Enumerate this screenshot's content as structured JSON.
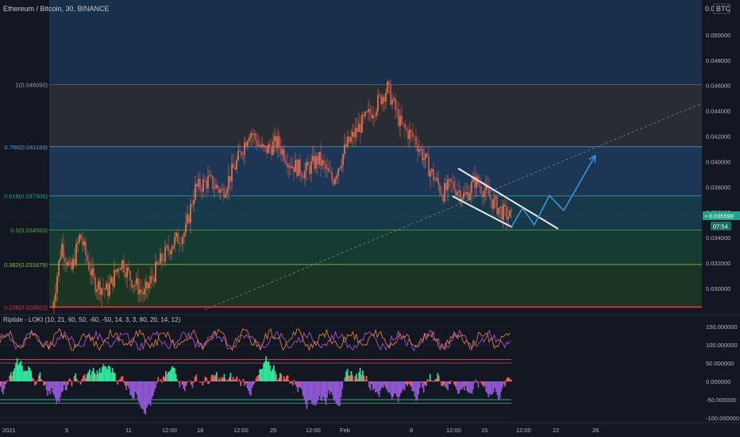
{
  "header": {
    "symbol": "Ethereum / Bitcoin, 30, BINANCE",
    "scale_label": "0.05",
    "currency": "BTC"
  },
  "colors": {
    "background": "#131722",
    "candle_up": "#ef7b45",
    "candle_down": "#cf5a5a",
    "arrow": "#3a98e8",
    "channel": "#e8e8f2",
    "oscillator_orange": "#f0863e",
    "oscillator_purple": "#b85ad6",
    "histogram_green": "#2ee59d",
    "histogram_purple": "#8e56d0",
    "histogram_red": "#f45b64"
  },
  "chart_data": {
    "type": "candlestick",
    "y_axis_labels": [
      "0.050000",
      "0.048000",
      "0.046000",
      "0.044000",
      "0.042000",
      "0.040000",
      "0.038000",
      "0.036000",
      "0.034000",
      "0.032000",
      "0.030000"
    ],
    "x_axis_labels": [
      "2021",
      "5",
      "11",
      "12:00",
      "18",
      "12:00",
      "25",
      "12:00",
      "Feb",
      "8",
      "12:00",
      "15",
      "12:00",
      "22",
      "26"
    ],
    "ylim": [
      0.0283,
      0.0515
    ],
    "fib_levels": [
      {
        "ratio": "1",
        "price": 0.04609,
        "label": "1(0.046090)",
        "color": "#9aa1b0"
      },
      {
        "ratio": "0.786",
        "price": 0.041169,
        "label": "0.786(0.041169)",
        "color": "#5f9fe0"
      },
      {
        "ratio": "0.618",
        "price": 0.037306,
        "label": "0.618(0.037306)",
        "color": "#1fa59a"
      },
      {
        "ratio": "0.5",
        "price": 0.034593,
        "label": "0.5(0.034593)",
        "color": "#4caf50"
      },
      {
        "ratio": "0.382",
        "price": 0.031879,
        "label": "0.382(0.031879)",
        "color": "#86b84a"
      },
      {
        "ratio": "0.236",
        "price": 0.028522,
        "label": "0.236(0.028522)",
        "color": "#e53935"
      }
    ],
    "price_path": [
      {
        "t": 0.0,
        "p": 0.0285
      },
      {
        "t": 0.02,
        "p": 0.0335
      },
      {
        "t": 0.04,
        "p": 0.0312
      },
      {
        "t": 0.06,
        "p": 0.0342
      },
      {
        "t": 0.09,
        "p": 0.0305
      },
      {
        "t": 0.12,
        "p": 0.0298
      },
      {
        "t": 0.15,
        "p": 0.0322
      },
      {
        "t": 0.17,
        "p": 0.0308
      },
      {
        "t": 0.2,
        "p": 0.0295
      },
      {
        "t": 0.23,
        "p": 0.0318
      },
      {
        "t": 0.26,
        "p": 0.0335
      },
      {
        "t": 0.29,
        "p": 0.0345
      },
      {
        "t": 0.31,
        "p": 0.0378
      },
      {
        "t": 0.34,
        "p": 0.0385
      },
      {
        "t": 0.37,
        "p": 0.0376
      },
      {
        "t": 0.4,
        "p": 0.0398
      },
      {
        "t": 0.43,
        "p": 0.0425
      },
      {
        "t": 0.46,
        "p": 0.0408
      },
      {
        "t": 0.49,
        "p": 0.0415
      },
      {
        "t": 0.52,
        "p": 0.0398
      },
      {
        "t": 0.55,
        "p": 0.0392
      },
      {
        "t": 0.58,
        "p": 0.0402
      },
      {
        "t": 0.61,
        "p": 0.0385
      },
      {
        "t": 0.64,
        "p": 0.0412
      },
      {
        "t": 0.67,
        "p": 0.0428
      },
      {
        "t": 0.7,
        "p": 0.0442
      },
      {
        "t": 0.73,
        "p": 0.0458
      },
      {
        "t": 0.76,
        "p": 0.0428
      },
      {
        "t": 0.79,
        "p": 0.0418
      },
      {
        "t": 0.82,
        "p": 0.0395
      },
      {
        "t": 0.85,
        "p": 0.0375
      },
      {
        "t": 0.87,
        "p": 0.0382
      },
      {
        "t": 0.9,
        "p": 0.0372
      },
      {
        "t": 0.92,
        "p": 0.0385
      },
      {
        "t": 0.94,
        "p": 0.0378
      },
      {
        "t": 0.96,
        "p": 0.0368
      },
      {
        "t": 0.98,
        "p": 0.036
      },
      {
        "t": 1.0,
        "p": 0.0356
      }
    ],
    "current_price": "0.035598",
    "countdown": "07:54"
  },
  "oscillator": {
    "title": "Riptide - LOKI (10, 21, 60, 50, -60, -50, 14, 3, 3, 80, 20, 14, 12)",
    "axis_labels": [
      "150.000000",
      "100.000000",
      "50.000000",
      "0.000000",
      "-50.000000",
      "-100.000000"
    ]
  }
}
